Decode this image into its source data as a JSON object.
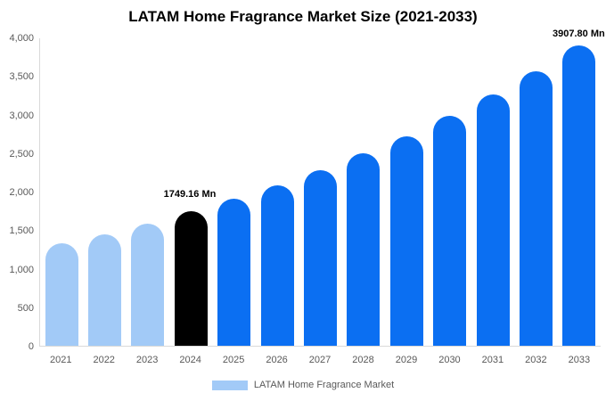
{
  "chart_data": {
    "type": "bar",
    "title": "LATAM Home Fragrance Market Size (2021-2033)",
    "categories": [
      "2021",
      "2022",
      "2023",
      "2024",
      "2025",
      "2026",
      "2027",
      "2028",
      "2029",
      "2030",
      "2031",
      "2032",
      "2033"
    ],
    "series": [
      {
        "name": "LATAM Home Fragrance Market",
        "values": [
          1330,
          1450,
          1590,
          1749.16,
          1910,
          2090,
          2290,
          2500,
          2730,
          2990,
          3270,
          3570,
          3907.8
        ]
      }
    ],
    "ylim": [
      0,
      4000
    ],
    "y_ticks": [
      "4,000",
      "3,500",
      "3,000",
      "2,500",
      "2,000",
      "1,500",
      "1,000",
      "500",
      "0"
    ],
    "grid": false,
    "legend_position": "bottom",
    "annotations": [
      {
        "year": "2024",
        "label": "1749.16 Mn"
      },
      {
        "year": "2033",
        "label": "3907.80 Mn"
      }
    ],
    "bar_colors": [
      "light",
      "light",
      "light",
      "black",
      "blue",
      "blue",
      "blue",
      "blue",
      "blue",
      "blue",
      "blue",
      "blue",
      "blue"
    ],
    "palette": {
      "light": "#A2CAF7",
      "blue": "#0B6FF2",
      "black": "#000000"
    }
  },
  "legend": {
    "label": "LATAM Home Fragrance Market",
    "swatch_color": "#A2CAF7"
  },
  "axis": {
    "text_color": "#595959",
    "line_color": "#D9D9D9"
  }
}
